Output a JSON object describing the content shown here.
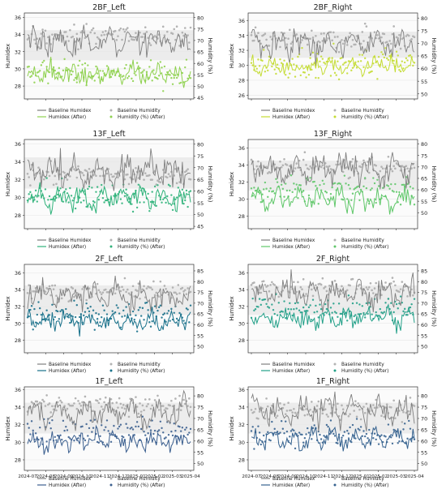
{
  "figure": {
    "colors": {
      "baseline": "#7f7f7f",
      "baseline_scatter": "#b3b3b3",
      "grid": "#e6e6e6",
      "band": "#e9e9e9"
    }
  },
  "chart_data": [
    {
      "id": "p0",
      "type": "line",
      "title": "2BF_Left",
      "ylabel": "Humidex",
      "ylabel_right": "Humidity (%)",
      "ylim": [
        26.5,
        36.5
      ],
      "y_ticks": [
        28,
        30,
        32,
        34,
        36
      ],
      "ylim_right": [
        44.5,
        82
      ],
      "y2_ticks": [
        45,
        50,
        55,
        60,
        65,
        70,
        75,
        80
      ],
      "after_color": "#8fd14f",
      "grid": true,
      "baseline_humidex_mean": 33.0,
      "after_humidex_mean": 29.4,
      "baseline_humidity_mean": 72,
      "after_humidity_mean": 56,
      "legend": [
        "Baseline Humidex",
        "Baseline Humidity",
        "Humidex (After)",
        "Humidity (%) (After)"
      ]
    },
    {
      "id": "p1",
      "type": "line",
      "title": "2BF_Right",
      "ylabel": "Humidex",
      "ylabel_right": "Humidity (%)",
      "ylim": [
        25.5,
        37
      ],
      "y_ticks": [
        26,
        28,
        30,
        32,
        34,
        36
      ],
      "ylim_right": [
        48,
        82
      ],
      "y2_ticks": [
        50,
        55,
        60,
        65,
        70,
        75,
        80
      ],
      "after_color": "#c4dc33",
      "grid": true,
      "baseline_humidex_mean": 32.8,
      "after_humidex_mean": 29.8,
      "baseline_humidity_mean": 72,
      "after_humidity_mean": 62,
      "legend": [
        "Baseline Humidex",
        "Baseline Humidity",
        "Humidex (After)",
        "Humidity (%) (After)"
      ]
    },
    {
      "id": "p2",
      "type": "line",
      "title": "13F_Left",
      "ylabel": "Humidex",
      "ylabel_right": "Humidity (%)",
      "ylim": [
        26.5,
        36.5
      ],
      "y_ticks": [
        28,
        30,
        32,
        34,
        36
      ],
      "ylim_right": [
        44,
        82
      ],
      "y2_ticks": [
        45,
        50,
        55,
        60,
        65,
        70,
        75,
        80
      ],
      "after_color": "#2fb27a",
      "grid": true,
      "baseline_humidex_mean": 32.9,
      "after_humidex_mean": 30.0,
      "baseline_humidity_mean": 67,
      "after_humidity_mean": 58,
      "legend": [
        "Baseline Humidex",
        "Baseline Humidity",
        "Humidex (After)",
        "Humidity (%) (After)"
      ]
    },
    {
      "id": "p3",
      "type": "line",
      "title": "13F_Right",
      "ylabel": "Humidex",
      "ylabel_right": "Humidity (%)",
      "ylim": [
        26.5,
        37
      ],
      "y_ticks": [
        28,
        30,
        32,
        34,
        36
      ],
      "ylim_right": [
        43,
        82
      ],
      "y2_ticks": [
        50,
        55,
        60,
        65,
        70,
        75,
        80
      ],
      "after_color": "#5fc769",
      "grid": true,
      "baseline_humidex_mean": 33.5,
      "after_humidex_mean": 30.0,
      "baseline_humidity_mean": 70,
      "after_humidity_mean": 60,
      "legend": [
        "Baseline Humidex",
        "Baseline Humidity",
        "Humidex (After)",
        "Humidity (%) (After)"
      ]
    },
    {
      "id": "p4",
      "type": "line",
      "title": "2F_Left",
      "ylabel": "Humidex",
      "ylabel_right": "Humidity (%)",
      "ylim": [
        26.5,
        37
      ],
      "y_ticks": [
        28,
        30,
        32,
        34,
        36
      ],
      "ylim_right": [
        47,
        88
      ],
      "y2_ticks": [
        50,
        55,
        60,
        65,
        70,
        75,
        80,
        85
      ],
      "after_color": "#17708a",
      "grid": true,
      "baseline_humidex_mean": 33.3,
      "after_humidex_mean": 30.3,
      "baseline_humidity_mean": 76,
      "after_humidity_mean": 65,
      "legend": [
        "Baseline Humidex",
        "Baseline Humidity",
        "Humidex (After)",
        "Humidity (%) (After)"
      ]
    },
    {
      "id": "p5",
      "type": "line",
      "title": "2F_Right",
      "ylabel": "Humidex",
      "ylabel_right": "Humidity (%)",
      "ylim": [
        26.5,
        37
      ],
      "y_ticks": [
        28,
        30,
        32,
        34,
        36
      ],
      "ylim_right": [
        47,
        88
      ],
      "y2_ticks": [
        50,
        55,
        60,
        65,
        70,
        75,
        80,
        85
      ],
      "after_color": "#22a088",
      "grid": true,
      "baseline_humidex_mean": 33.6,
      "after_humidex_mean": 30.6,
      "baseline_humidity_mean": 77,
      "after_humidity_mean": 67,
      "legend": [
        "Baseline Humidex",
        "Baseline Humidity",
        "Humidex (After)",
        "Humidity (%) (After)"
      ]
    },
    {
      "id": "p6",
      "type": "line",
      "title": "1F_Left",
      "ylabel": "Humidex",
      "ylabel_right": "Humidity (%)",
      "ylim": [
        26.8,
        36.3
      ],
      "y_ticks": [
        28,
        30,
        32,
        34,
        36
      ],
      "ylim_right": [
        47,
        84
      ],
      "y2_ticks": [
        50,
        55,
        60,
        65,
        70,
        75,
        80
      ],
      "after_color": "#3b5f8f",
      "grid": true,
      "baseline_humidex_mean": 33.4,
      "after_humidex_mean": 30.1,
      "baseline_humidity_mean": 76,
      "after_humidity_mean": 64,
      "legend": [
        "Baseline Humidex",
        "Baseline Humidity",
        "Humidex (After)",
        "Humidity (%) (After)"
      ],
      "x_ticks": [
        "2024-07",
        "2024-08",
        "2024-09",
        "2024-10",
        "2024-11",
        "2024-12",
        "2025-01",
        "2025-02",
        "2025-03",
        "2025-04"
      ]
    },
    {
      "id": "p7",
      "type": "line",
      "title": "1F_Right",
      "ylabel": "Humidex",
      "ylabel_right": "Humidity (%)",
      "ylim": [
        26.8,
        36.3
      ],
      "y_ticks": [
        28,
        30,
        32,
        34,
        36
      ],
      "ylim_right": [
        47,
        84
      ],
      "y2_ticks": [
        50,
        55,
        60,
        65,
        70,
        75,
        80
      ],
      "after_color": "#35628f",
      "grid": true,
      "baseline_humidex_mean": 33.6,
      "after_humidex_mean": 30.4,
      "baseline_humidity_mean": 74,
      "after_humidity_mean": 63,
      "legend": [
        "Baseline Humidex",
        "Baseline Humidity",
        "Humidex (After)",
        "Humidity (%) (After)"
      ],
      "x_ticks": [
        "2024-07",
        "2024-08",
        "2024-09",
        "2024-10",
        "2024-11",
        "2024-12",
        "2025-01",
        "2025-02",
        "2025-03",
        "2025-04"
      ]
    }
  ]
}
